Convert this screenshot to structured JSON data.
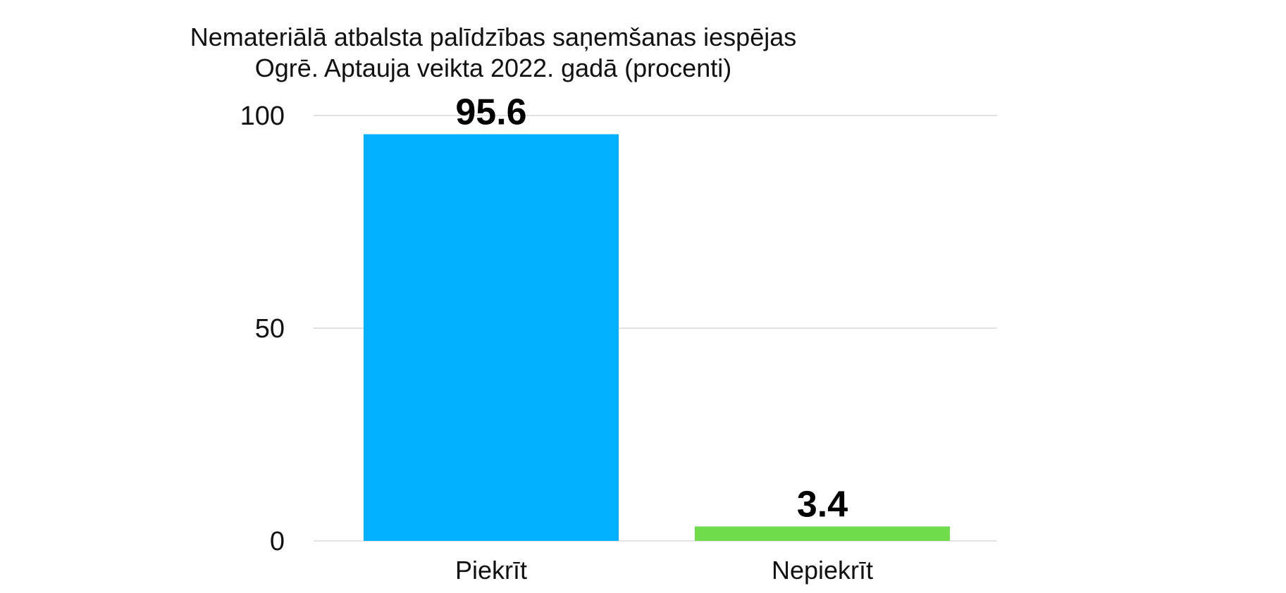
{
  "chart_data": {
    "type": "bar",
    "title_lines": [
      "Nemateriālā atbalsta palīdzības saņemšanas iespējas",
      "Ogrē. Aptauja veikta 2022. gadā (procenti)"
    ],
    "categories": [
      "Piekrīt",
      "Nepiekrīt"
    ],
    "values": [
      95.6,
      3.4
    ],
    "value_labels": [
      "95.6",
      "3.4"
    ],
    "colors": [
      "#00b1ff",
      "#6fdc4b"
    ],
    "ylim": [
      0,
      100
    ],
    "yticks": [
      0,
      50,
      100
    ],
    "ytick_labels": [
      "0",
      "50",
      "100"
    ],
    "grid": true,
    "legend": "none"
  }
}
